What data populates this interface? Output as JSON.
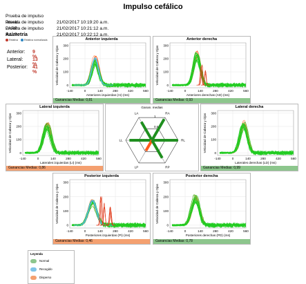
{
  "title": "Impulso cefálico",
  "tests": [
    {
      "label": "Prueba de impulso lateral:",
      "value": "21/02/2017 10:19:20 a.m."
    },
    {
      "label": "Prueba de impulso LARP:",
      "value": "21/02/2017 10:21:12 a.m."
    },
    {
      "label": "Prueba de impulso RALP:",
      "value": "21/02/2017 10:22:12 a.m."
    }
  ],
  "asymmetry": {
    "title": "Asimetría",
    "legend_relative": "Relativa",
    "legend_normalized": "Relativa normalizada",
    "rows": [
      {
        "label": "Anterior:",
        "value": "9 %"
      },
      {
        "label": "Lateral:",
        "value": "13 %"
      },
      {
        "label": "Posterior:",
        "value": "41 %"
      }
    ]
  },
  "panels": {
    "ai": {
      "title": "Anterior izquierda",
      "xlabel": "Anteriores izquierdas (AI) (ms)",
      "gain": "Ganancias Medias: 0,81"
    },
    "ad": {
      "title": "Anterior derecha",
      "xlabel": "Anteriores derechas (AD) (ms)",
      "gain": "Ganancias Medias: 0,93"
    },
    "li": {
      "title": "Lateral izquierda",
      "xlabel": "Laterales izquierdas (LI) (ms)",
      "gain": "Ganancias Medias: 0,86"
    },
    "ld": {
      "title": "Lateral derecha",
      "xlabel": "Laterales derechas (LD) (ms)",
      "gain": "Ganancias Medias: 0,99"
    },
    "pi": {
      "title": "Posterior izquierda",
      "xlabel": "Posteriores izquierdas (PI) (ms)",
      "gain": "Ganancias Medias: 0,46"
    },
    "pd": {
      "title": "Posterior derecha",
      "xlabel": "Posteriores derechas (PD) (ms)",
      "gain": "Ganancias Medias: 0,78"
    }
  },
  "ylabel": "Velocidad de Cabeza y Ojos",
  "hex": {
    "title": "Ganan. medias",
    "labels": [
      "LA",
      "RA",
      "LL",
      "RL",
      "LP",
      "RP"
    ],
    "ring_labels": [
      "0,5",
      "1"
    ]
  },
  "chart_data": {
    "type": "line",
    "x_ticks": [
      -140,
      0,
      140,
      280,
      420,
      560
    ],
    "y_ticks": [
      0,
      100,
      200,
      300
    ],
    "xlim": [
      -140,
      560
    ],
    "ylim": [
      -20,
      320
    ],
    "grid": true
  },
  "legend": {
    "title": "Leyenda",
    "items": [
      {
        "label": "Normal",
        "color": "#8dc68d"
      },
      {
        "label": "Recogido",
        "color": "#7fc4e8"
      },
      {
        "label": "Disperso",
        "color": "#f4a070"
      }
    ]
  },
  "colors": {
    "normal": "#22cc22",
    "head": "#ff6a2a",
    "recogido": "#58b8e6",
    "dispersed": "#e03a1a"
  }
}
